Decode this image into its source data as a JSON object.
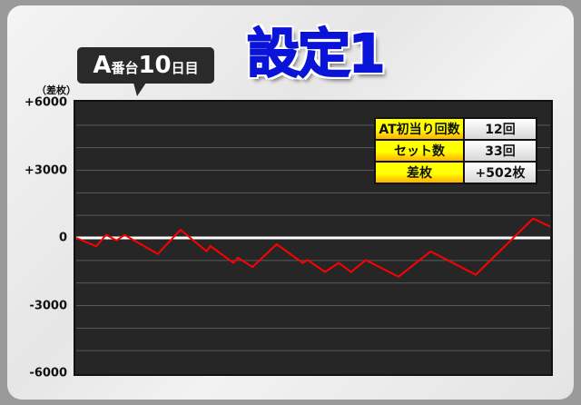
{
  "badge": {
    "machine": "A",
    "machine_suffix": "番台",
    "day": "10",
    "day_suffix": "日目"
  },
  "title": "設定1",
  "stats": [
    {
      "label": "AT初当り回数",
      "value": "12回"
    },
    {
      "label": "セット数",
      "value": "33回"
    },
    {
      "label": "差枚",
      "value": "+502枚"
    }
  ],
  "chart_data": {
    "type": "line",
    "ylabel": "（差枚）",
    "ylim": [
      -6000,
      6000
    ],
    "yticks": [
      {
        "v": 6000,
        "label": "+6000"
      },
      {
        "v": 3000,
        "label": "+3000"
      },
      {
        "v": 0,
        "label": "0"
      },
      {
        "v": -3000,
        "label": "-3000"
      },
      {
        "v": -6000,
        "label": "-6000"
      }
    ],
    "grid": true,
    "grid_step": 1000,
    "colors": {
      "line": "#ff0000",
      "background": "#262626",
      "grid": "#5a5a5a",
      "zero": "#ffffff"
    },
    "series": [
      {
        "values": [
          {
            "x": 0,
            "y": 0
          },
          {
            "x": 4.2,
            "y": -370
          },
          {
            "x": 6.3,
            "y": 130
          },
          {
            "x": 8.5,
            "y": -110
          },
          {
            "x": 10.2,
            "y": 130
          },
          {
            "x": 17.2,
            "y": -710
          },
          {
            "x": 22,
            "y": 360
          },
          {
            "x": 27.5,
            "y": -590
          },
          {
            "x": 28.3,
            "y": -360
          },
          {
            "x": 33.2,
            "y": -1110
          },
          {
            "x": 34.1,
            "y": -880
          },
          {
            "x": 37.2,
            "y": -1290
          },
          {
            "x": 42.3,
            "y": -280
          },
          {
            "x": 47.8,
            "y": -1110
          },
          {
            "x": 48.8,
            "y": -980
          },
          {
            "x": 52.5,
            "y": -1510
          },
          {
            "x": 55.4,
            "y": -1110
          },
          {
            "x": 58,
            "y": -1510
          },
          {
            "x": 61.1,
            "y": -980
          },
          {
            "x": 68,
            "y": -1720
          },
          {
            "x": 74.8,
            "y": -600
          },
          {
            "x": 84.3,
            "y": -1630
          },
          {
            "x": 96.4,
            "y": 860
          },
          {
            "x": 100,
            "y": 502
          }
        ]
      }
    ]
  }
}
